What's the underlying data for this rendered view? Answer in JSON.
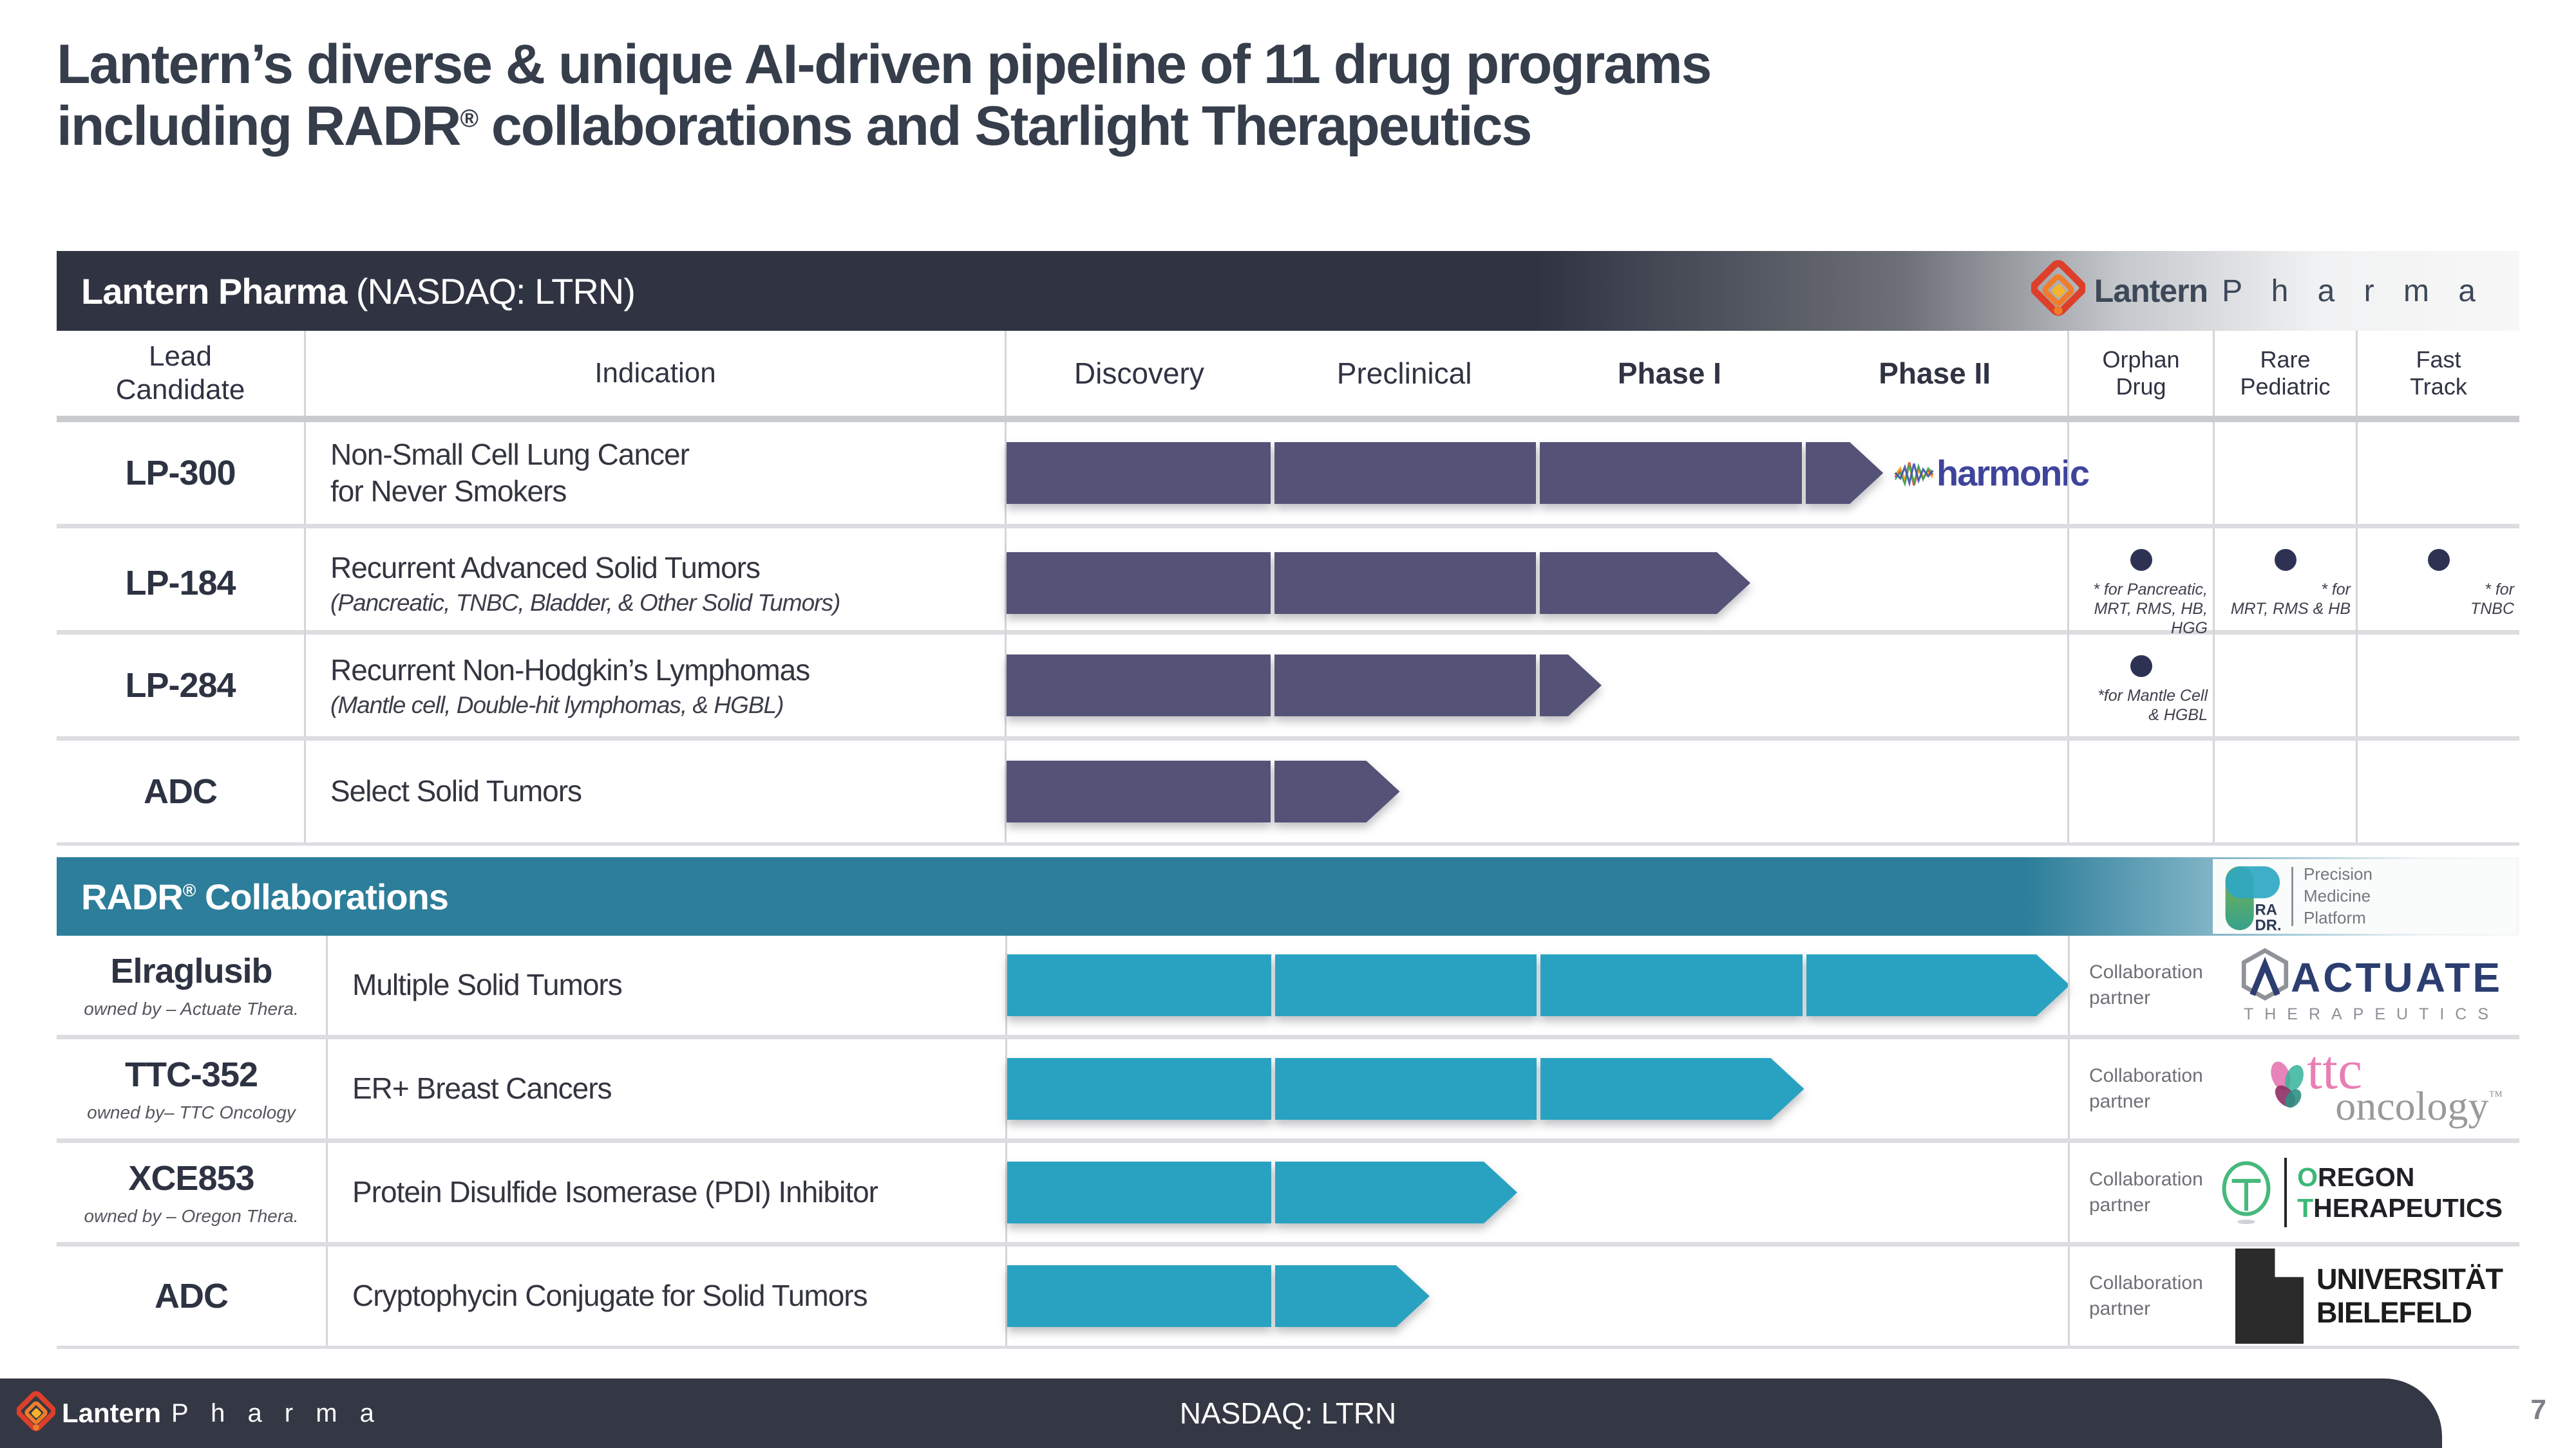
{
  "title": {
    "line1": "Lantern’s diverse & unique AI-driven pipeline of 11 drug programs",
    "line2_pre": "including RADR",
    "line2_sup": "®",
    "line2_post": " collaborations and Starlight Therapeutics"
  },
  "stages": {
    "labels": [
      "Discovery",
      "Preclinical",
      "Phase I",
      "Phase II"
    ]
  },
  "brand": {
    "name_bold": "Lantern",
    "name_light": "P h a r m a"
  },
  "pipeline": {
    "header_bold": "Lantern Pharma",
    "header_rest": " (NASDAQ: LTRN)",
    "bar_color": "#555277",
    "columns": {
      "lead": "Lead\nCandidate",
      "indication": "Indication",
      "orphan": "Orphan\nDrug",
      "rare": "Rare\nPediatric",
      "fast": "Fast\nTrack"
    },
    "rows": [
      {
        "candidate": "LP-300",
        "indication": "Non-Small Cell Lung Cancer\nfor Never Smokers",
        "bar": {
          "segments": 3,
          "arrow_from": 3,
          "arrow_to": 3.3
        },
        "partner_logo_text": "harmonic"
      },
      {
        "candidate": "LP-184",
        "indication": "Recurrent Advanced Solid Tumors",
        "sub": "(Pancreatic, TNBC, Bladder, & Other Solid Tumors)",
        "bar": {
          "segments": 2,
          "arrow_from": 2,
          "arrow_to": 2.8
        },
        "notes": {
          "orphan": "* for Pancreatic,\nMRT, RMS, HB, HGG",
          "rare": "* for\nMRT, RMS & HB",
          "fast": "* for\nTNBC"
        }
      },
      {
        "candidate": "LP-284",
        "indication": "Recurrent Non-Hodgkin’s Lymphomas",
        "sub": "(Mantle cell, Double-hit lymphomas, & HGBL)",
        "bar": {
          "segments": 2,
          "arrow_from": 2,
          "arrow_to": 2.24
        },
        "notes": {
          "orphan": "*for Mantle Cell\n& HGBL"
        }
      },
      {
        "candidate": "ADC",
        "indication": "Select Solid Tumors",
        "bar": {
          "segments": 1,
          "arrow_from": 1,
          "arrow_to": 1.48
        }
      }
    ]
  },
  "radr": {
    "header_pre": "RADR",
    "header_sup": "®",
    "header_post": " Collaborations",
    "bar_color": "#29a2c2",
    "logo": {
      "glyph1": "RA",
      "glyph2": "DR.",
      "tag": "Precision\nMedicine\nPlatform"
    },
    "collab_label": "Collaboration\npartner",
    "rows": [
      {
        "candidate": "Elraglusib",
        "owned_by": "owned by –  Actuate Thera.",
        "indication": "Multiple Solid Tumors",
        "bar": {
          "segments": 3,
          "arrow_from": 3,
          "arrow_to": 4.0
        },
        "partner": {
          "line1": "ACTUATE",
          "line2": "THERAPEUTICS"
        }
      },
      {
        "candidate": "TTC-352",
        "owned_by": "owned by– TTC Oncology",
        "indication": "ER+ Breast Cancers",
        "bar": {
          "segments": 2,
          "arrow_from": 2,
          "arrow_to": 3.0
        },
        "partner": {
          "line1": "ttc",
          "line2": "oncology",
          "tm": "™"
        }
      },
      {
        "candidate": "XCE853",
        "owned_by": "owned by – Oregon Thera.",
        "indication": "Protein Disulfide Isomerase (PDI) Inhibitor",
        "bar": {
          "segments": 1,
          "arrow_from": 1,
          "arrow_to": 1.92
        },
        "partner": {
          "l1_first": "O",
          "l1_rest": "REGON",
          "l2_first": "T",
          "l2_rest": "HERAPEUTICS"
        }
      },
      {
        "candidate": "ADC",
        "indication": "Cryptophycin Conjugate for Solid Tumors",
        "bar": {
          "segments": 1,
          "arrow_from": 1,
          "arrow_to": 1.59
        },
        "partner": {
          "line1": "UNIVERSITÄT",
          "line2": "BIELEFELD"
        }
      }
    ]
  },
  "footer": {
    "nasdaq": "NASDAQ: LTRN",
    "page": "7"
  },
  "chart_data": {
    "type": "table",
    "title": "Lantern’s diverse & unique AI-driven pipeline of 11 drug programs including RADR® collaborations and Starlight Therapeutics",
    "stages": [
      "Discovery",
      "Preclinical",
      "Phase I",
      "Phase II"
    ],
    "progress_units_note": "progress measured in stage units: 1=end of Discovery, 2=end of Preclinical, 3=end of Phase I, 4=end of Phase II",
    "sections": [
      {
        "name": "Lantern Pharma (NASDAQ: LTRN)",
        "bar_color": "#555277",
        "rows": [
          {
            "candidate": "LP-300",
            "indication": "Non-Small Cell Lung Cancer for Never Smokers",
            "progress": 3.3,
            "orphan_drug": false,
            "rare_pediatric": false,
            "fast_track": false,
            "partner": "harmonic"
          },
          {
            "candidate": "LP-184",
            "indication": "Recurrent Advanced Solid Tumors (Pancreatic, TNBC, Bladder, & Other Solid Tumors)",
            "progress": 2.8,
            "orphan_drug": true,
            "orphan_note": "* for Pancreatic, MRT, RMS, HB, HGG",
            "rare_pediatric": true,
            "rare_note": "* for MRT, RMS & HB",
            "fast_track": true,
            "fast_note": "* for TNBC"
          },
          {
            "candidate": "LP-284",
            "indication": "Recurrent Non-Hodgkin’s Lymphomas (Mantle cell, Double-hit lymphomas, & HGBL)",
            "progress": 2.24,
            "orphan_drug": true,
            "orphan_note": "*for Mantle Cell & HGBL",
            "rare_pediatric": false,
            "fast_track": false
          },
          {
            "candidate": "ADC",
            "indication": "Select Solid Tumors",
            "progress": 1.48,
            "orphan_drug": false,
            "rare_pediatric": false,
            "fast_track": false
          }
        ]
      },
      {
        "name": "RADR® Collaborations",
        "bar_color": "#29a2c2",
        "rows": [
          {
            "candidate": "Elraglusib",
            "owned_by": "Actuate Thera.",
            "indication": "Multiple Solid Tumors",
            "progress": 4.0,
            "collaboration_partner": "Actuate Therapeutics"
          },
          {
            "candidate": "TTC-352",
            "owned_by": "TTC Oncology",
            "indication": "ER+ Breast Cancers",
            "progress": 3.0,
            "collaboration_partner": "ttc oncology"
          },
          {
            "candidate": "XCE853",
            "owned_by": "Oregon Thera.",
            "indication": "Protein Disulfide Isomerase (PDI) Inhibitor",
            "progress": 1.92,
            "collaboration_partner": "Oregon Therapeutics"
          },
          {
            "candidate": "ADC",
            "indication": "Cryptophycin Conjugate for Solid Tumors",
            "progress": 1.59,
            "collaboration_partner": "Universität Bielefeld"
          }
        ]
      }
    ]
  }
}
